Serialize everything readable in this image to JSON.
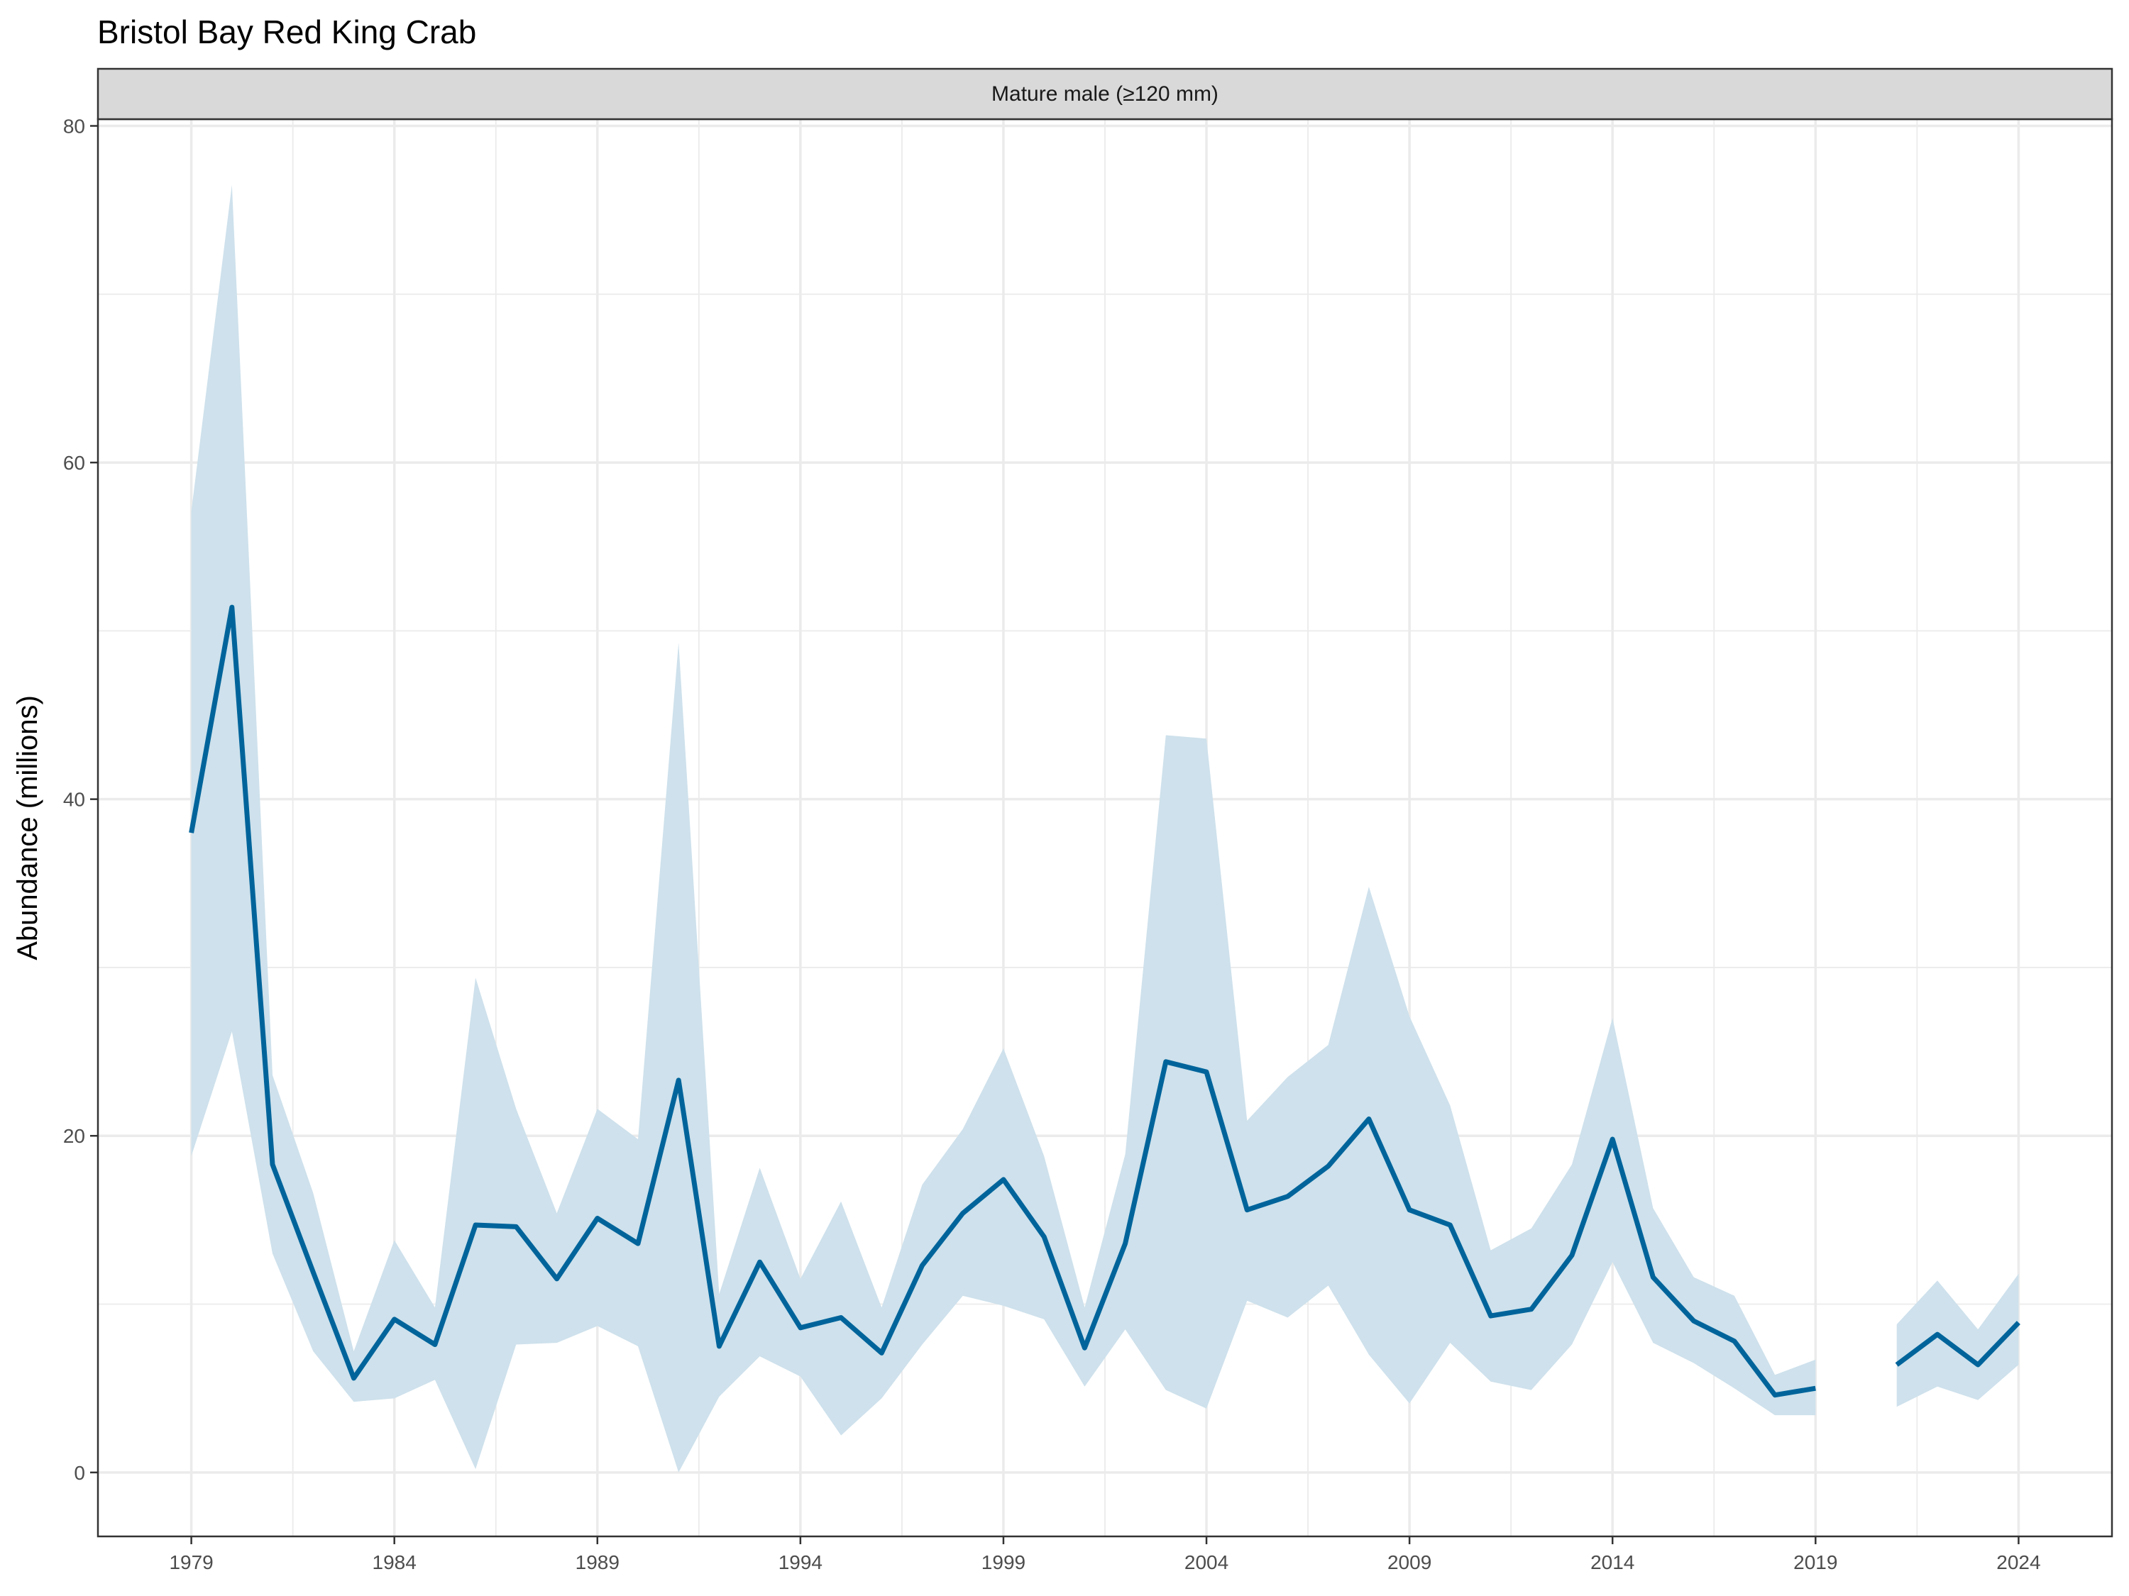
{
  "chart_data": {
    "type": "line",
    "title": "Bristol Bay Red King Crab",
    "facet_label": "Mature male (≥120 mm)",
    "xlabel": "",
    "ylabel": "Abundance (millions)",
    "xlim": [
      1976.7,
      2026.3
    ],
    "ylim": [
      -3.8,
      80.4
    ],
    "x_ticks": [
      1979,
      1984,
      1989,
      1994,
      1999,
      2004,
      2009,
      2014,
      2019,
      2024
    ],
    "y_ticks": [
      0,
      20,
      40,
      60,
      80
    ],
    "grid": true,
    "colors": {
      "line": "#00649B",
      "ribbon": "#CEE1EC",
      "strip_fill": "#D9D9D9",
      "grid": "#EBEBEB"
    },
    "series": [
      {
        "x": [
          1979,
          1980,
          1981,
          1982,
          1983,
          1984,
          1985,
          1986,
          1987,
          1988,
          1989,
          1990,
          1991,
          1992,
          1993,
          1994,
          1995,
          1996,
          1997,
          1998,
          1999,
          2000,
          2001,
          2002,
          2003,
          2004,
          2005,
          2006,
          2007,
          2008,
          2009,
          2010,
          2011,
          2012,
          2013,
          2014,
          2015,
          2016,
          2017,
          2018,
          2019,
          2020,
          2021,
          2022,
          2023,
          2024
        ],
        "y": [
          38.0,
          51.4,
          18.3,
          11.9,
          5.6,
          9.1,
          7.6,
          14.7,
          14.6,
          11.5,
          15.1,
          13.6,
          23.3,
          7.5,
          12.5,
          8.6,
          9.2,
          7.1,
          12.3,
          15.4,
          17.4,
          14.0,
          7.4,
          13.6,
          24.4,
          23.8,
          15.6,
          16.4,
          18.2,
          21.0,
          15.6,
          14.7,
          9.3,
          9.7,
          12.9,
          19.8,
          11.6,
          9.0,
          7.8,
          4.6,
          5.0,
          null,
          6.4,
          8.2,
          6.4,
          8.9
        ],
        "lower": [
          18.8,
          26.2,
          13.0,
          7.2,
          4.2,
          4.4,
          5.5,
          0.2,
          7.6,
          7.7,
          8.7,
          7.5,
          0.0,
          4.5,
          6.9,
          5.7,
          2.2,
          4.4,
          7.6,
          10.5,
          9.9,
          9.1,
          5.1,
          8.5,
          4.9,
          3.8,
          10.2,
          9.2,
          11.1,
          7.0,
          4.1,
          7.7,
          5.4,
          4.9,
          7.6,
          12.5,
          7.7,
          6.5,
          5.0,
          3.4,
          3.4,
          null,
          3.9,
          5.1,
          4.3,
          6.4
        ],
        "upper": [
          57.1,
          76.5,
          23.6,
          16.6,
          7.2,
          13.8,
          9.8,
          29.4,
          21.6,
          15.4,
          21.6,
          19.8,
          49.3,
          10.6,
          18.1,
          11.5,
          16.1,
          9.8,
          17.1,
          20.4,
          25.2,
          18.8,
          9.8,
          18.9,
          43.8,
          43.6,
          20.9,
          23.5,
          25.4,
          34.8,
          27.1,
          21.8,
          13.2,
          14.5,
          18.3,
          27.0,
          15.7,
          11.6,
          10.5,
          5.8,
          6.7,
          null,
          8.8,
          11.4,
          8.5,
          11.8
        ]
      }
    ]
  }
}
